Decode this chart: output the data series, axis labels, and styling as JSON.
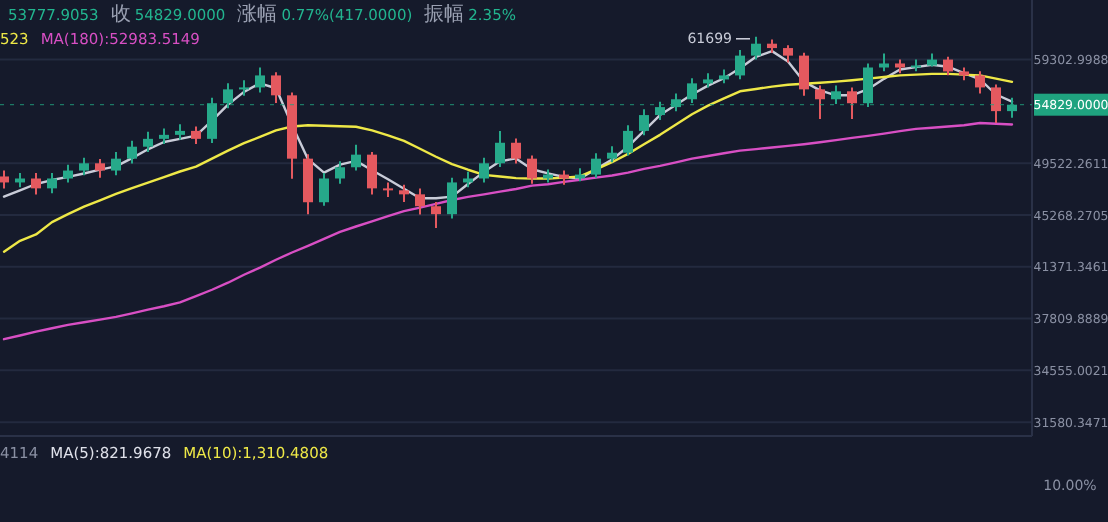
{
  "chart_data": [
    {
      "type": "candlestick",
      "log": true,
      "grid": "y",
      "tick_labels": "y",
      "ylim": [
        30830,
        65770
      ],
      "yticks": [
        59302.9988,
        49522.2611,
        45268.2705,
        41371.3461,
        37809.8889,
        34555.0021,
        31580.3471
      ],
      "categories": [
        null,
        null,
        null,
        null,
        null,
        null,
        null,
        null,
        null,
        null,
        null,
        null,
        null,
        null,
        null,
        null,
        null,
        null,
        null,
        null,
        null,
        null,
        null,
        null,
        null,
        null,
        null,
        null,
        null,
        null,
        null,
        null,
        null,
        null,
        null,
        null,
        null,
        null,
        null,
        null,
        null,
        null,
        null,
        null,
        null,
        null,
        null,
        null,
        null,
        null,
        null,
        null,
        null,
        null,
        null,
        null,
        null,
        null,
        null,
        null,
        null,
        null,
        null,
        null
      ],
      "ohlc": [
        [
          48400,
          48900,
          47400,
          47900
        ],
        [
          47900,
          48700,
          47500,
          48230
        ],
        [
          48230,
          48700,
          46900,
          47410
        ],
        [
          47410,
          48700,
          47000,
          48230
        ],
        [
          48230,
          49400,
          47900,
          48900
        ],
        [
          48900,
          50000,
          48500,
          49520
        ],
        [
          49520,
          49900,
          48300,
          48900
        ],
        [
          48900,
          50500,
          48500,
          49920
        ],
        [
          49920,
          51500,
          49500,
          50970
        ],
        [
          50970,
          52300,
          50500,
          51670
        ],
        [
          51670,
          52600,
          51200,
          52030
        ],
        [
          52030,
          53000,
          51600,
          52390
        ],
        [
          52390,
          52800,
          51200,
          51670
        ],
        [
          51670,
          55500,
          51300,
          54970
        ],
        [
          54970,
          56900,
          54500,
          56310
        ],
        [
          56310,
          57200,
          55700,
          56500
        ],
        [
          56500,
          58500,
          56000,
          57690
        ],
        [
          57690,
          58000,
          55000,
          55730
        ],
        [
          55730,
          56000,
          48200,
          49920
        ],
        [
          49920,
          50300,
          45330,
          46280
        ],
        [
          46280,
          48700,
          46000,
          48230
        ],
        [
          48230,
          49700,
          47800,
          49180
        ],
        [
          49180,
          51140,
          48900,
          50270
        ],
        [
          50270,
          50500,
          46900,
          47410
        ],
        [
          47410,
          47900,
          46700,
          47250
        ],
        [
          47250,
          47700,
          46300,
          46920
        ],
        [
          46920,
          47400,
          45300,
          45960
        ],
        [
          45960,
          46300,
          44260,
          45330
        ],
        [
          45330,
          48300,
          45000,
          47900
        ],
        [
          47900,
          48800,
          47500,
          48230
        ],
        [
          48230,
          50000,
          47900,
          49520
        ],
        [
          49520,
          52390,
          49200,
          51320
        ],
        [
          51320,
          51700,
          49500,
          49920
        ],
        [
          49920,
          50200,
          47800,
          48230
        ],
        [
          48230,
          49000,
          47900,
          48560
        ],
        [
          48560,
          48900,
          47700,
          48230
        ],
        [
          48230,
          49100,
          48000,
          48560
        ],
        [
          48560,
          50400,
          48300,
          49920
        ],
        [
          49920,
          51000,
          49600,
          50440
        ],
        [
          50440,
          52900,
          50200,
          52390
        ],
        [
          52390,
          54400,
          52000,
          53850
        ],
        [
          53850,
          55100,
          53400,
          54600
        ],
        [
          54600,
          55900,
          54200,
          55350
        ],
        [
          55350,
          57400,
          55000,
          56900
        ],
        [
          56900,
          57900,
          56500,
          57290
        ],
        [
          57290,
          58300,
          56900,
          57690
        ],
        [
          57690,
          60300,
          57300,
          59710
        ],
        [
          59710,
          61699,
          59300,
          60960
        ],
        [
          60960,
          61400,
          60000,
          60500
        ],
        [
          60500,
          60800,
          59000,
          59710
        ],
        [
          59710,
          60000,
          55700,
          56310
        ],
        [
          56310,
          56700,
          53480,
          55350
        ],
        [
          55350,
          56700,
          54900,
          56120
        ],
        [
          56120,
          56500,
          53480,
          54970
        ],
        [
          54970,
          58900,
          54600,
          58490
        ],
        [
          58490,
          59920,
          58100,
          58900
        ],
        [
          58900,
          59300,
          57900,
          58490
        ],
        [
          58490,
          59300,
          58100,
          58690
        ],
        [
          58690,
          59920,
          58600,
          59300
        ],
        [
          59300,
          59600,
          57700,
          58090
        ],
        [
          58090,
          58500,
          57200,
          57690
        ],
        [
          57690,
          58100,
          55900,
          56500
        ],
        [
          56500,
          56800,
          53110,
          54220
        ],
        [
          54220,
          55500,
          53600,
          54829
        ]
      ],
      "series": [
        {
          "type": "line",
          "color": "#c9ccd8",
          "values": [
            46730,
            47250,
            47770,
            48100,
            48370,
            48650,
            48980,
            49260,
            49970,
            50740,
            51390,
            51670,
            51960,
            53330,
            54830,
            56070,
            56900,
            56420,
            52930,
            49880,
            48730,
            49400,
            49730,
            48920,
            48170,
            47380,
            46600,
            46600,
            46730,
            47770,
            48790,
            49690,
            49940,
            49010,
            48660,
            48370,
            48230,
            49020,
            49850,
            50970,
            52390,
            53850,
            54820,
            55810,
            56680,
            57410,
            58410,
            59590,
            60180,
            59100,
            57070,
            56210,
            55730,
            55730,
            56330,
            57350,
            58290,
            58530,
            58770,
            58570,
            57930,
            57290,
            55810,
            55120
          ]
        },
        {
          "type": "line",
          "color": "#eee847",
          "values": [
            42470,
            43280,
            43760,
            44710,
            45330,
            45930,
            46440,
            46950,
            47430,
            47880,
            48340,
            48820,
            49230,
            49920,
            50620,
            51280,
            51850,
            52430,
            52790,
            52910,
            52860,
            52810,
            52770,
            52430,
            51990,
            51490,
            50790,
            50090,
            49450,
            48970,
            48530,
            48400,
            48260,
            48230,
            48230,
            48300,
            48400,
            49000,
            49610,
            50340,
            51180,
            52030,
            52970,
            53920,
            54740,
            55430,
            56120,
            56340,
            56580,
            56760,
            56860,
            56960,
            57070,
            57210,
            57370,
            57530,
            57690,
            57770,
            57850,
            57850,
            57770,
            57690,
            57370,
            57050
          ]
        },
        {
          "type": "line",
          "color": "#d84fc4",
          "values": [
            36480,
            36710,
            36960,
            37180,
            37400,
            37570,
            37740,
            37920,
            38150,
            38400,
            38630,
            38890,
            39310,
            39750,
            40240,
            40800,
            41310,
            41880,
            42410,
            42900,
            43420,
            43960,
            44370,
            44760,
            45170,
            45570,
            45850,
            46150,
            46460,
            46710,
            46920,
            47140,
            47360,
            47640,
            47750,
            47950,
            48120,
            48300,
            48480,
            48720,
            49040,
            49300,
            49600,
            49920,
            50150,
            50390,
            50620,
            50760,
            50900,
            51040,
            51190,
            51370,
            51560,
            51760,
            51940,
            52140,
            52370,
            52570,
            52680,
            52790,
            52900,
            53110,
            53040,
            52970
          ]
        }
      ],
      "ref_lines": [
        {
          "axis": "y",
          "value": 54829,
          "label": "54829.0000",
          "color": "#1fa37f"
        }
      ],
      "annotations": [
        "53777.9053",
        "收",
        "54829.0000",
        "涨幅",
        "0.77%(417.0000)",
        "振幅",
        "2.35%",
        "523",
        "MA(180):52983.5149",
        "61699"
      ]
    },
    {
      "type": "other",
      "annotations": [
        "4114",
        "MA(5):821.9678",
        "MA(10):1,310.4808",
        "10.00%"
      ]
    }
  ]
}
